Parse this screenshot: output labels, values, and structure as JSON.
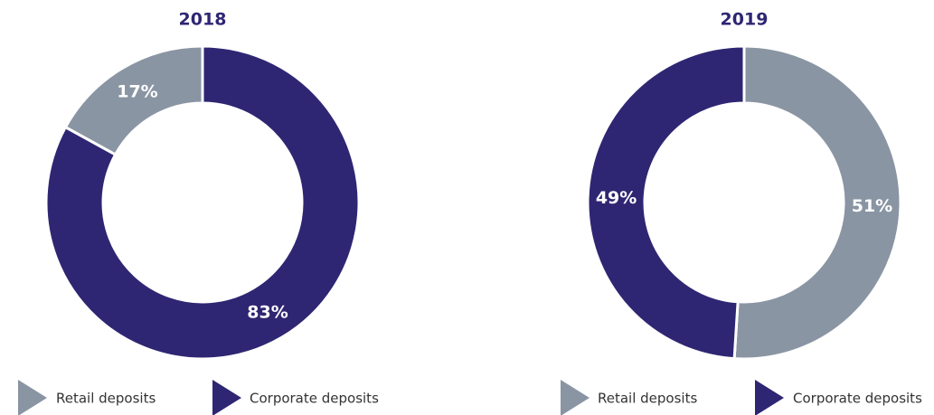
{
  "chart_data": [
    {
      "type": "donut",
      "title": "2018",
      "direction": "counterclockwise",
      "categories": [
        "Retail deposits",
        "Corporate deposits"
      ],
      "values": [
        17,
        83
      ],
      "value_labels": [
        "17%",
        "83%"
      ],
      "colors": [
        "#8a95a3",
        "#2e2672"
      ]
    },
    {
      "type": "donut",
      "title": "2019",
      "direction": "clockwise",
      "categories": [
        "Retail deposits",
        "Corporate deposits"
      ],
      "values": [
        51,
        49
      ],
      "value_labels": [
        "51%",
        "49%"
      ],
      "colors": [
        "#8a95a3",
        "#2e2672"
      ]
    }
  ]
}
